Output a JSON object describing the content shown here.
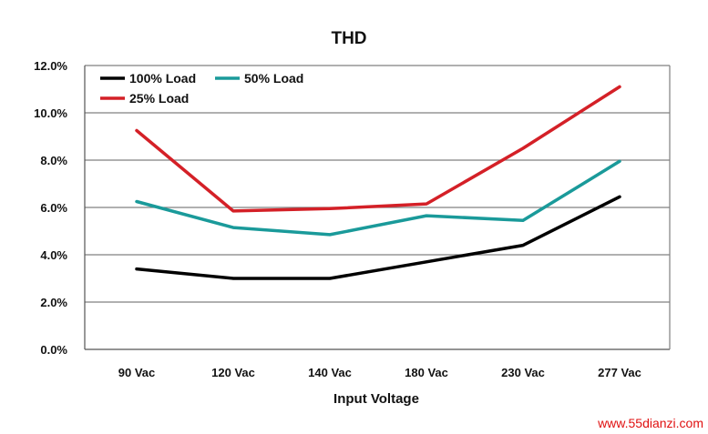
{
  "chart_data": {
    "type": "line",
    "title": "THD",
    "xlabel": "Input Voltage",
    "ylabel": "",
    "categories": [
      "90 Vac",
      "120 Vac",
      "140 Vac",
      "180 Vac",
      "230 Vac",
      "277 Vac"
    ],
    "ylim": [
      0,
      12
    ],
    "yticks": [
      0,
      2,
      4,
      6,
      8,
      10,
      12
    ],
    "ytick_labels": [
      "0.0%",
      "2.0%",
      "4.0%",
      "6.0%",
      "8.0%",
      "10.0%",
      "12.0%"
    ],
    "grid": true,
    "legend_position": "top-left",
    "series": [
      {
        "name": "100% Load",
        "color": "#000000",
        "values": [
          3.4,
          3.0,
          3.0,
          3.7,
          4.4,
          6.45
        ]
      },
      {
        "name": "50% Load",
        "color": "#1a9a9a",
        "values": [
          6.25,
          5.15,
          4.85,
          5.65,
          5.45,
          7.95
        ]
      },
      {
        "name": "25% Load",
        "color": "#d42027",
        "values": [
          9.25,
          5.85,
          5.95,
          6.15,
          8.5,
          11.1
        ]
      }
    ]
  },
  "watermark": "www.55dianzi.com"
}
